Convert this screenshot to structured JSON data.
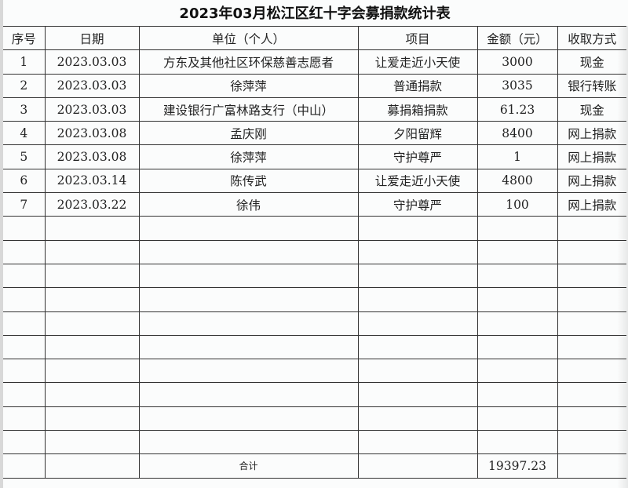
{
  "title": "2023年03月松江区红十字会募捐款统计表",
  "columns": [
    "序号",
    "日期",
    "单位（个人）",
    "项目",
    "金额（元）",
    "收取方式"
  ],
  "rows": [
    [
      "1",
      "2023.03.03",
      "方东及其他社区环保慈善志愿者",
      "让爱走近小天使",
      "3000",
      "现金"
    ],
    [
      "2",
      "2023.03.03",
      "徐萍萍",
      "普通捐款",
      "3035",
      "银行转账"
    ],
    [
      "3",
      "2023.03.03",
      "建设银行广富林路支行（中山）",
      "募捐箱捐款",
      "61.23",
      "现金"
    ],
    [
      "4",
      "2023.03.08",
      "孟庆刚",
      "夕阳留辉",
      "8400",
      "网上捐款"
    ],
    [
      "5",
      "2023.03.08",
      "徐萍萍",
      "守护尊严",
      "1",
      "网上捐款"
    ],
    [
      "6",
      "2023.03.14",
      "陈传武",
      "让爱走近小天使",
      "4800",
      "网上捐款"
    ],
    [
      "7",
      "2023.03.22",
      "徐伟",
      "守护尊严",
      "100",
      "网上捐款"
    ]
  ],
  "total": {
    "label": "合计",
    "amount": "19397.23"
  }
}
